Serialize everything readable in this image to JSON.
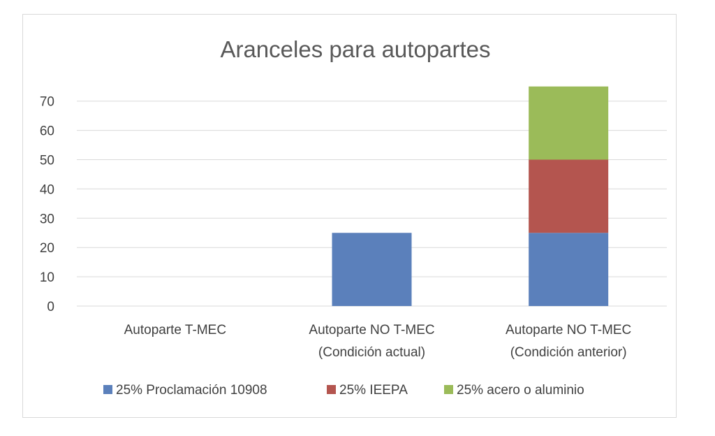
{
  "chart_data": {
    "type": "bar",
    "stacked": true,
    "title": "Aranceles para autopartes",
    "xlabel": "",
    "ylabel": "",
    "ylim": [
      0,
      75
    ],
    "yticks": [
      0,
      10,
      20,
      30,
      40,
      50,
      60,
      70
    ],
    "grid": true,
    "legend_position": "bottom",
    "categories": [
      [
        "Autoparte T-MEC"
      ],
      [
        "Autoparte NO T-MEC",
        "(Condición actual)"
      ],
      [
        "Autoparte NO T-MEC",
        "(Condición anterior)"
      ]
    ],
    "series": [
      {
        "name": "25% Proclamación 10908",
        "color": "#5b80bb",
        "values": [
          0,
          25,
          25
        ]
      },
      {
        "name": "25% IEEPA",
        "color": "#b4554f",
        "values": [
          0,
          0,
          25
        ]
      },
      {
        "name": "25% acero o aluminio",
        "color": "#9bbb59",
        "values": [
          0,
          0,
          25
        ]
      }
    ]
  }
}
